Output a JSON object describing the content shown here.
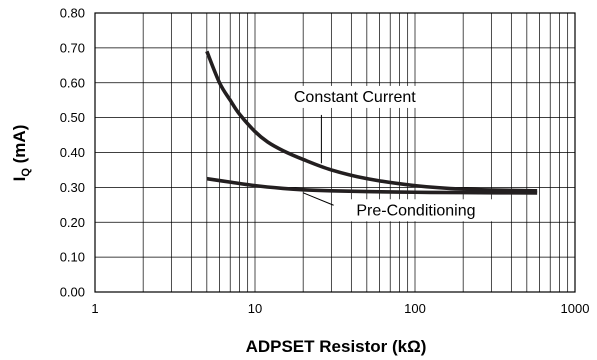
{
  "chart_data": {
    "type": "line",
    "title": "",
    "xlabel": "ADPSET Resistor (kΩ)",
    "ylabel_main": "I",
    "ylabel_sub": "Q",
    "ylabel_rest": " (mA)",
    "x_scale": "log",
    "xlim": [
      1,
      1000
    ],
    "ylim": [
      0,
      0.8
    ],
    "grid": true,
    "legend": "none",
    "x_tick_labels": [
      "1",
      "10",
      "100",
      "1000"
    ],
    "y_tick_labels": [
      "0.00",
      "0.10",
      "0.20",
      "0.30",
      "0.40",
      "0.50",
      "0.60",
      "0.70",
      "0.80"
    ],
    "series": [
      {
        "name": "Constant Current",
        "x": [
          5,
          6,
          7,
          8,
          10,
          12,
          15,
          20,
          30,
          50,
          100,
          200,
          580
        ],
        "y": [
          0.69,
          0.6,
          0.55,
          0.51,
          0.46,
          0.43,
          0.405,
          0.38,
          0.35,
          0.325,
          0.305,
          0.295,
          0.29
        ]
      },
      {
        "name": "Pre-Conditioning",
        "x": [
          5,
          7,
          10,
          15,
          20,
          30,
          50,
          100,
          200,
          580
        ],
        "y": [
          0.325,
          0.315,
          0.305,
          0.297,
          0.293,
          0.29,
          0.288,
          0.286,
          0.285,
          0.284
        ]
      }
    ],
    "annotations": [
      {
        "text": "Constant Current",
        "series": 0
      },
      {
        "text": "Pre-Conditioning",
        "series": 1
      }
    ],
    "line_color": "#231f20"
  }
}
